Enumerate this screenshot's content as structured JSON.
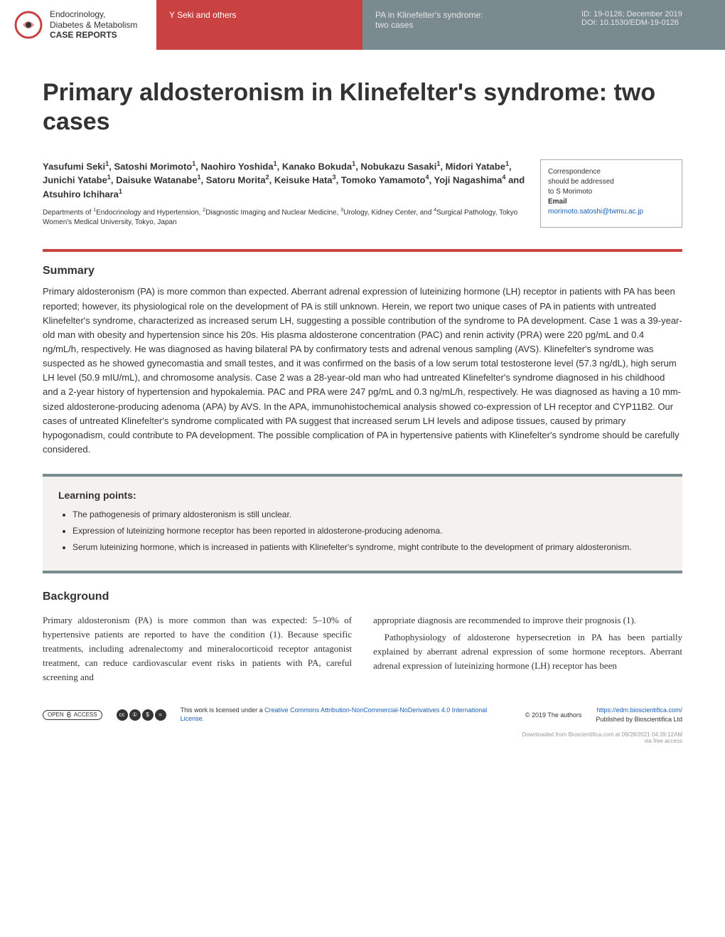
{
  "header": {
    "logo_line1": "Endocrinology,",
    "logo_line2": "Diabetes & Metabolism",
    "logo_line3": "CASE REPORTS",
    "authors_short": "Y Seki and others",
    "short_title_1": "PA in Klinefelter's syndrome:",
    "short_title_2": "two cases",
    "id_line": "ID: 19-0126; December 2019",
    "doi_line": "DOI: 10.1530/EDM-19-0126"
  },
  "title": "Primary aldosteronism in Klinefelter's syndrome: two cases",
  "authors_html": "Yasufumi Seki<sup>1</sup>, Satoshi Morimoto<sup>1</sup>, Naohiro Yoshida<sup>1</sup>, Kanako Bokuda<sup>1</sup>, Nobukazu Sasaki<sup>1</sup>, Midori Yatabe<sup>1</sup>, Junichi Yatabe<sup>1</sup>, Daisuke Watanabe<sup>1</sup>, Satoru Morita<sup>2</sup>, Keisuke Hata<sup>3</sup>, Tomoko Yamamoto<sup>4</sup>, Yoji Nagashima<sup>4</sup> and Atsuhiro Ichihara<sup>1</sup>",
  "affiliations": "Departments of <sup>1</sup>Endocrinology and Hypertension, <sup>2</sup>Diagnostic Imaging and Nuclear Medicine, <sup>3</sup>Urology, Kidney Center, and <sup>4</sup>Surgical Pathology, Tokyo Women's Medical University, Tokyo, Japan",
  "correspondence": {
    "label1": "Correspondence",
    "label2": "should be addressed",
    "label3": "to S Morimoto",
    "email_label": "Email",
    "email": "morimoto.satoshi@twmu.ac.jp"
  },
  "summary": {
    "heading": "Summary",
    "text": "Primary aldosteronism (PA) is more common than expected. Aberrant adrenal expression of luteinizing hormone (LH) receptor in patients with PA has been reported; however, its physiological role on the development of PA is still unknown. Herein, we report two unique cases of PA in patients with untreated Klinefelter's syndrome, characterized as increased serum LH, suggesting a possible contribution of the syndrome to PA development. Case 1 was a 39-year-old man with obesity and hypertension since his 20s. His plasma aldosterone concentration (PAC) and renin activity (PRA) were 220 pg/mL and 0.4 ng/mL/h, respectively. He was diagnosed as having bilateral PA by confirmatory tests and adrenal venous sampling (AVS). Klinefelter's syndrome was suspected as he showed gynecomastia and small testes, and it was confirmed on the basis of a low serum total testosterone level (57.3 ng/dL), high serum LH level (50.9 mIU/mL), and chromosome analysis. Case 2 was a 28-year-old man who had untreated Klinefelter's syndrome diagnosed in his childhood and a 2-year history of hypertension and hypokalemia. PAC and PRA were 247 pg/mL and 0.3 ng/mL/h, respectively. He was diagnosed as having a 10 mm-sized aldosterone-producing adenoma (APA) by AVS. In the APA, immunohistochemical analysis showed co-expression of LH receptor and CYP11B2. Our cases of untreated Klinefelter's syndrome complicated with PA suggest that increased serum LH levels and adipose tissues, caused by primary hypogonadism, could contribute to PA development. The possible complication of PA in hypertensive patients with Klinefelter's syndrome should be carefully considered."
  },
  "learning": {
    "heading": "Learning points:",
    "items": [
      "The pathogenesis of primary aldosteronism is still unclear.",
      "Expression of luteinizing hormone receptor has been reported in aldosterone-producing adenoma.",
      "Serum luteinizing hormone, which is increased in patients with Klinefelter's syndrome, might contribute to the development of primary aldosteronism."
    ]
  },
  "background": {
    "heading": "Background",
    "col1_p1": "Primary aldosteronism (PA) is more common than was expected: 5–10% of hypertensive patients are reported to have the condition (1). Because specific treatments, including adrenalectomy and mineralocorticoid receptor antagonist treatment, can reduce cardiovascular event risks in patients with PA, careful screening and",
    "col2_p1": "appropriate diagnosis are recommended to improve their prognosis (1).",
    "col2_p2": "Pathophysiology of aldosterone hypersecretion in PA has been partially explained by aberrant adrenal expression of some hormone receptors. Aberrant adrenal expression of luteinizing hormone (LH) receptor has been"
  },
  "footer": {
    "oa_open": "OPEN",
    "oa_access": "ACCESS",
    "license_text": "This work is licensed under a ",
    "license_link": "Creative Commons Attribution-NonCommercial-NoDerivatives 4.0 International License.",
    "copyright": "© 2019 The authors",
    "url": "https://edm.bioscientifica.com/",
    "publisher": "Published by Bioscientifica Ltd",
    "download": "Downloaded from Bioscientifica.com at 09/28/2021 04:39:12AM",
    "via": "via free access"
  },
  "colors": {
    "red": "#c94141",
    "gray": "#7a8b8f",
    "link": "#1a5fb4",
    "text": "#333333",
    "box_bg": "#f3f2ef"
  }
}
